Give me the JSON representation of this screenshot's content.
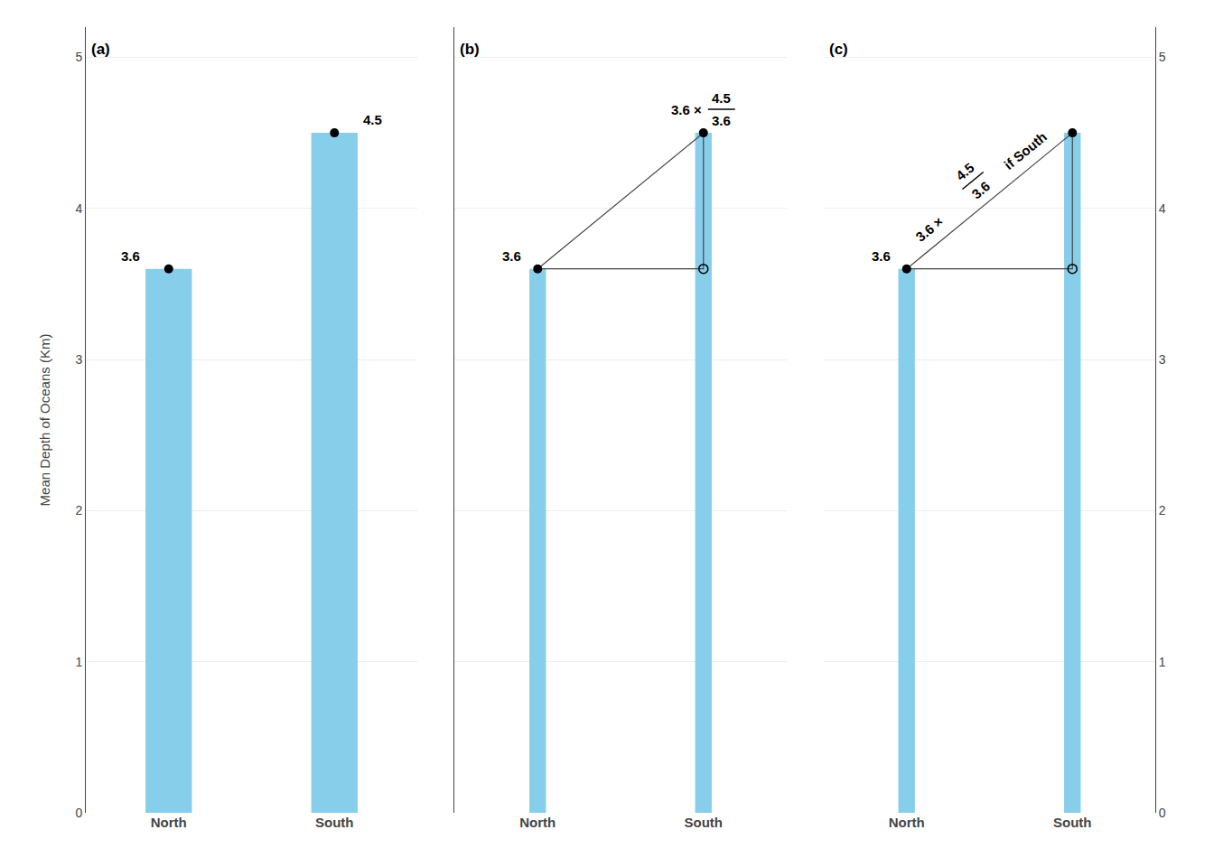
{
  "chart_data": [
    {
      "type": "bar",
      "title": "(a)",
      "categories": [
        "North",
        "South"
      ],
      "values": [
        3.6,
        4.5
      ],
      "color": "#87CEEB",
      "marker": "circle",
      "ylabel": "Mean Depth of Oceans (Km)",
      "ylim": [
        0,
        5.2
      ],
      "yticks": [
        0,
        1,
        2,
        3,
        4,
        5
      ],
      "grid": true,
      "data_labels": true
    },
    {
      "type": "bar",
      "title": "(b)",
      "categories": [
        "North",
        "South"
      ],
      "values": [
        3.6,
        4.5
      ],
      "color": "#87CEEB",
      "marker": "circle",
      "ylim": [
        0,
        5.2
      ],
      "yticks": [
        0,
        1,
        2,
        3,
        4,
        5
      ],
      "grid": true,
      "tick_labels": "x",
      "annotations": [
        "3.6",
        "3.6 ×",
        "4.5",
        "3.6"
      ]
    },
    {
      "type": "bar",
      "title": "(c)",
      "categories": [
        "North",
        "South"
      ],
      "values": [
        3.6,
        4.5
      ],
      "color": "#87CEEB",
      "marker": "circle",
      "ylim": [
        0,
        5.2
      ],
      "yticks": [
        0,
        1,
        2,
        3,
        4,
        5
      ],
      "grid": true,
      "annotations": [
        "3.6",
        "3.6 ×",
        "4.5",
        "3.6",
        "if South"
      ]
    }
  ]
}
